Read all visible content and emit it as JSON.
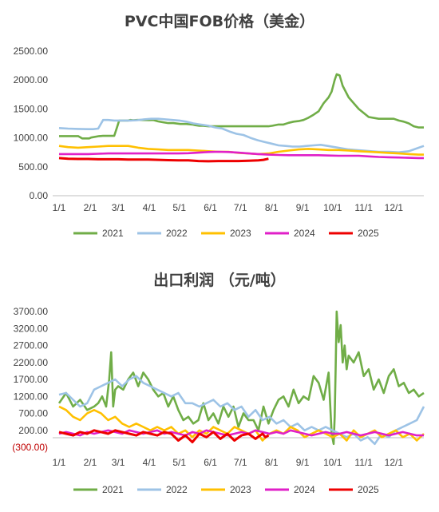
{
  "colors": {
    "2021": "#70ad47",
    "2022": "#9dc3e6",
    "2023": "#ffc000",
    "2024": "#e020c8",
    "2025": "#ee0000"
  },
  "chart_data": [
    {
      "type": "line",
      "title": "PVC中国FOB价格（美金）",
      "x_ticks": [
        "1/1",
        "2/1",
        "3/1",
        "4/1",
        "5/1",
        "6/1",
        "7/1",
        "8/1",
        "9/1",
        "10/1",
        "11/1",
        "12/1"
      ],
      "y_ticks": [
        "2500.00",
        "2000.00",
        "1500.00",
        "1000.00",
        "500.00",
        "0.00"
      ],
      "ylim": [
        0,
        2500
      ],
      "legend_position": "bottom",
      "series": [
        {
          "name": "2021",
          "x": [
            1,
            20,
            24,
            31,
            33,
            41,
            45,
            48,
            52,
            56,
            59,
            61,
            65,
            70,
            72,
            75,
            79,
            83,
            91,
            95,
            100,
            105,
            110,
            115,
            122,
            128,
            134,
            137,
            141,
            145,
            150,
            155,
            160,
            165,
            170,
            175,
            182,
            190,
            196,
            200,
            204,
            210,
            214,
            220,
            225,
            230,
            235,
            240,
            245,
            250,
            255,
            260,
            265,
            270,
            273,
            276,
            278,
            281,
            284,
            290,
            300,
            310,
            320,
            330,
            335,
            340,
            345,
            350,
            355,
            360,
            365
          ],
          "y": [
            1030,
            1030,
            990,
            990,
            1005,
            1030,
            1035,
            1035,
            1035,
            1035,
            1190,
            1300,
            1300,
            1300,
            1310,
            1305,
            1310,
            1310,
            1305,
            1310,
            1285,
            1270,
            1255,
            1255,
            1240,
            1240,
            1230,
            1220,
            1210,
            1210,
            1200,
            1200,
            1200,
            1200,
            1200,
            1200,
            1200,
            1200,
            1200,
            1200,
            1200,
            1200,
            1210,
            1230,
            1230,
            1260,
            1280,
            1290,
            1310,
            1350,
            1400,
            1460,
            1600,
            1700,
            1800,
            2000,
            2100,
            2080,
            1900,
            1700,
            1500,
            1360,
            1330,
            1330,
            1330,
            1300,
            1280,
            1250,
            1200,
            1180,
            1180
          ]
        },
        {
          "name": "2022",
          "x": [
            1,
            10,
            20,
            30,
            35,
            40,
            45,
            50,
            56,
            60,
            65,
            72,
            79,
            86,
            93,
            100,
            107,
            114,
            121,
            128,
            135,
            142,
            150,
            157,
            164,
            171,
            178,
            185,
            192,
            199,
            206,
            213,
            220,
            227,
            234,
            241,
            248,
            255,
            262,
            269,
            276,
            283,
            290,
            297,
            305,
            312,
            320,
            330,
            340,
            350,
            355,
            360,
            365
          ],
          "y": [
            1170,
            1160,
            1155,
            1150,
            1150,
            1160,
            1310,
            1310,
            1300,
            1300,
            1300,
            1300,
            1305,
            1320,
            1330,
            1330,
            1320,
            1310,
            1300,
            1280,
            1250,
            1230,
            1210,
            1180,
            1160,
            1110,
            1070,
            1050,
            1000,
            960,
            930,
            900,
            870,
            860,
            850,
            850,
            860,
            870,
            880,
            860,
            840,
            820,
            800,
            790,
            780,
            770,
            760,
            760,
            750,
            770,
            800,
            830,
            860
          ]
        },
        {
          "name": "2023",
          "x": [
            1,
            10,
            20,
            30,
            40,
            50,
            60,
            70,
            80,
            90,
            100,
            110,
            120,
            130,
            140,
            150,
            160,
            170,
            180,
            190,
            200,
            210,
            220,
            230,
            240,
            250,
            260,
            270,
            280,
            290,
            300,
            310,
            320,
            330,
            340,
            350,
            360,
            365
          ],
          "y": [
            860,
            840,
            830,
            840,
            850,
            860,
            860,
            860,
            830,
            810,
            800,
            790,
            790,
            790,
            780,
            770,
            760,
            760,
            740,
            730,
            720,
            730,
            760,
            780,
            800,
            810,
            800,
            790,
            790,
            780,
            770,
            760,
            750,
            740,
            730,
            720,
            710,
            710
          ]
        },
        {
          "name": "2024",
          "x": [
            1,
            10,
            20,
            30,
            40,
            50,
            60,
            70,
            80,
            90,
            100,
            110,
            120,
            130,
            140,
            150,
            160,
            170,
            180,
            190,
            200,
            210,
            220,
            230,
            240,
            250,
            260,
            270,
            280,
            290,
            300,
            310,
            320,
            330,
            340,
            350,
            360,
            365
          ],
          "y": [
            720,
            720,
            720,
            720,
            725,
            730,
            730,
            730,
            730,
            730,
            730,
            730,
            730,
            735,
            745,
            755,
            760,
            755,
            745,
            730,
            720,
            710,
            705,
            700,
            700,
            700,
            700,
            695,
            690,
            690,
            690,
            680,
            670,
            665,
            660,
            655,
            650,
            650
          ]
        },
        {
          "name": "2025",
          "x": [
            1,
            10,
            20,
            30,
            40,
            50,
            60,
            70,
            80,
            90,
            100,
            110,
            120,
            130,
            140,
            150,
            160,
            170,
            180,
            190,
            200,
            205,
            210
          ],
          "y": [
            650,
            640,
            635,
            635,
            630,
            630,
            630,
            625,
            625,
            625,
            620,
            615,
            610,
            610,
            600,
            595,
            600,
            600,
            600,
            605,
            610,
            620,
            640
          ]
        }
      ]
    },
    {
      "type": "line",
      "title": "出口利润 （元/吨）",
      "x_ticks": [
        "1/1",
        "2/1",
        "3/1",
        "4/1",
        "5/1",
        "6/1",
        "7/1",
        "8/1",
        "9/1",
        "10/1",
        "11/1",
        "12/1"
      ],
      "y_ticks": [
        "3700.00",
        "3200.00",
        "2700.00",
        "2200.00",
        "1700.00",
        "1200.00",
        "700.00",
        "200.00",
        "(300.00)"
      ],
      "ylim": [
        -300,
        3700
      ],
      "legend_position": "bottom",
      "series": [
        {
          "name": "2021",
          "x": [
            1,
            8,
            15,
            22,
            29,
            36,
            40,
            44,
            48,
            51,
            53,
            55,
            57,
            60,
            65,
            70,
            75,
            80,
            85,
            90,
            95,
            100,
            105,
            110,
            115,
            120,
            125,
            130,
            135,
            140,
            145,
            150,
            155,
            160,
            165,
            170,
            175,
            180,
            185,
            190,
            195,
            200,
            205,
            210,
            215,
            220,
            225,
            230,
            235,
            240,
            245,
            250,
            255,
            260,
            265,
            270,
            273,
            275,
            276,
            277,
            278,
            280,
            282,
            284,
            286,
            288,
            290,
            295,
            300,
            305,
            310,
            315,
            320,
            325,
            330,
            335,
            340,
            345,
            350,
            355,
            360,
            365
          ],
          "y": [
            1000,
            1300,
            900,
            1100,
            800,
            900,
            1000,
            1200,
            900,
            1700,
            2500,
            900,
            1400,
            1500,
            1400,
            1700,
            1900,
            1500,
            1900,
            1700,
            1400,
            1200,
            1300,
            900,
            1200,
            800,
            500,
            600,
            400,
            500,
            1000,
            500,
            700,
            400,
            900,
            600,
            900,
            300,
            700,
            500,
            500,
            200,
            900,
            400,
            800,
            1100,
            1200,
            900,
            1400,
            1000,
            1200,
            1100,
            1800,
            1600,
            1100,
            1900,
            100,
            -200,
            600,
            2000,
            3700,
            2800,
            3300,
            2200,
            2700,
            2000,
            2400,
            2200,
            2500,
            1800,
            2000,
            1400,
            1700,
            1300,
            1800,
            2000,
            1500,
            1600,
            1300,
            1400,
            1200,
            1300
          ]
        },
        {
          "name": "2022",
          "x": [
            1,
            8,
            15,
            22,
            29,
            36,
            43,
            50,
            57,
            64,
            71,
            78,
            85,
            92,
            99,
            106,
            113,
            120,
            127,
            134,
            141,
            148,
            155,
            162,
            169,
            176,
            183,
            190,
            197,
            204,
            211,
            218,
            225,
            232,
            239,
            246,
            253,
            260,
            267,
            274,
            281,
            288,
            295,
            302,
            309,
            316,
            323,
            330,
            337,
            344,
            351,
            358,
            365
          ],
          "y": [
            1250,
            1300,
            1100,
            900,
            1000,
            1400,
            1500,
            1600,
            1700,
            1500,
            1700,
            1800,
            1600,
            1500,
            1400,
            1300,
            1200,
            1300,
            1000,
            1000,
            900,
            1000,
            1100,
            900,
            1000,
            800,
            900,
            600,
            800,
            500,
            600,
            400,
            500,
            300,
            400,
            200,
            300,
            200,
            300,
            200,
            100,
            0,
            100,
            -100,
            0,
            -200,
            100,
            0,
            200,
            300,
            400,
            500,
            900
          ]
        },
        {
          "name": "2023",
          "x": [
            1,
            8,
            15,
            22,
            29,
            36,
            43,
            50,
            57,
            64,
            71,
            78,
            85,
            92,
            99,
            106,
            113,
            120,
            127,
            134,
            141,
            148,
            155,
            162,
            169,
            176,
            183,
            190,
            197,
            204,
            211,
            218,
            225,
            232,
            239,
            246,
            253,
            260,
            267,
            274,
            281,
            288,
            295,
            302,
            309,
            316,
            323,
            330,
            337,
            344,
            351,
            358,
            365
          ],
          "y": [
            900,
            800,
            600,
            500,
            700,
            800,
            700,
            500,
            600,
            400,
            300,
            400,
            300,
            200,
            300,
            200,
            300,
            100,
            200,
            0,
            200,
            100,
            300,
            200,
            100,
            300,
            200,
            100,
            200,
            -100,
            100,
            200,
            100,
            300,
            200,
            0,
            100,
            200,
            100,
            0,
            100,
            -100,
            200,
            0,
            100,
            200,
            0,
            100,
            200,
            0,
            100,
            -100,
            100
          ]
        },
        {
          "name": "2024",
          "x": [
            1,
            8,
            15,
            22,
            29,
            36,
            43,
            50,
            57,
            64,
            71,
            78,
            85,
            92,
            99,
            106,
            113,
            120,
            127,
            134,
            141,
            148,
            155,
            162,
            169,
            176,
            183,
            190,
            197,
            204,
            211,
            218,
            225,
            232,
            239,
            246,
            253,
            260,
            267,
            274,
            281,
            288,
            295,
            302,
            309,
            316,
            323,
            330,
            337,
            344,
            351,
            358,
            365
          ],
          "y": [
            100,
            150,
            100,
            50,
            150,
            100,
            150,
            200,
            150,
            100,
            200,
            150,
            100,
            150,
            200,
            100,
            150,
            100,
            50,
            150,
            100,
            200,
            150,
            100,
            50,
            100,
            150,
            100,
            200,
            150,
            100,
            150,
            100,
            200,
            150,
            100,
            50,
            100,
            150,
            100,
            100,
            150,
            100,
            50,
            100,
            150,
            100,
            50,
            100,
            150,
            100,
            50,
            50
          ]
        },
        {
          "name": "2025",
          "x": [
            1,
            8,
            15,
            22,
            29,
            36,
            43,
            50,
            57,
            64,
            71,
            78,
            85,
            92,
            99,
            106,
            113,
            120,
            127,
            134,
            141,
            148,
            155,
            162,
            169,
            176,
            183,
            190,
            197,
            204,
            207,
            210
          ],
          "y": [
            150,
            100,
            50,
            150,
            100,
            200,
            150,
            100,
            200,
            150,
            100,
            50,
            150,
            100,
            50,
            150,
            100,
            -100,
            50,
            -150,
            100,
            0,
            150,
            -50,
            100,
            -100,
            50,
            100,
            -50,
            100,
            0,
            50
          ]
        }
      ]
    }
  ]
}
